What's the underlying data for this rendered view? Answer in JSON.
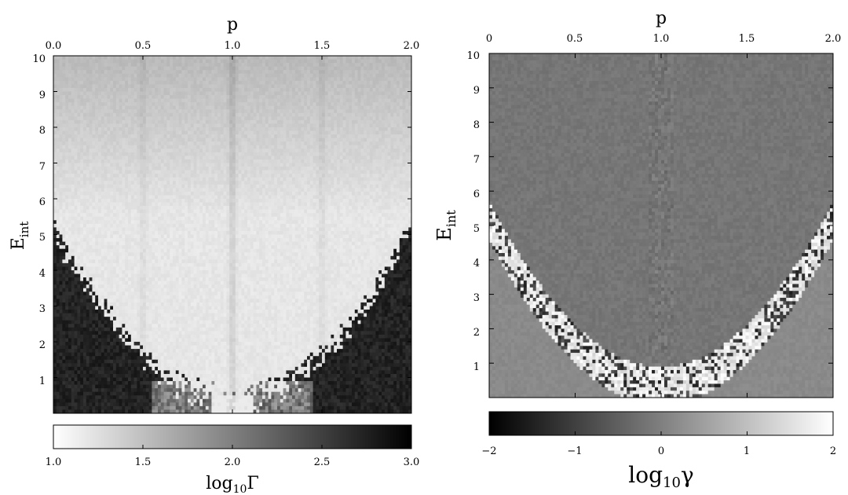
{
  "chart_data": [
    {
      "type": "heatmap",
      "xlabel": "p",
      "ylabel": "E",
      "ylabel_sub": "int",
      "xlim": [
        0.0,
        2.0
      ],
      "ylim": [
        0.0,
        10.0
      ],
      "xticks": [
        "0.0",
        "0.5",
        "1.0",
        "1.5",
        "2.0"
      ],
      "yticks": [
        "1",
        "2",
        "3",
        "4",
        "5",
        "6",
        "7",
        "8",
        "9",
        "10"
      ],
      "colorbar": {
        "label_prefix": "log",
        "label_sub": "10",
        "label_symbol": "Γ",
        "range": [
          1.0,
          3.0
        ],
        "ticks": [
          "1.0",
          "1.5",
          "2.0",
          "2.5",
          "3.0"
        ],
        "colormap": "white-to-black"
      },
      "features": {
        "boundary_energy_at_p0": 5.2,
        "boundary_energy_at_p1": 0.4,
        "vertical_lines_at_p": [
          0.5,
          1.0,
          1.5
        ]
      }
    },
    {
      "type": "heatmap",
      "xlabel": "p",
      "ylabel": "E",
      "ylabel_sub": "int",
      "xlim": [
        0.0,
        2.0
      ],
      "ylim": [
        0.0,
        10.0
      ],
      "xticks": [
        "0",
        "0.5",
        "1.0",
        "1.5",
        "2.0"
      ],
      "yticks": [
        "1",
        "2",
        "3",
        "4",
        "5",
        "6",
        "7",
        "8",
        "9",
        "10"
      ],
      "colorbar": {
        "label_prefix": "log",
        "label_sub": "10",
        "label_symbol": "γ",
        "range": [
          -2,
          2
        ],
        "ticks": [
          "−2",
          "−1",
          "0",
          "1",
          "2"
        ],
        "colormap": "black-to-white"
      },
      "features": {
        "bright_band_energy_at_p0": 5.2,
        "bright_band_energy_at_p1": 0.4
      }
    }
  ]
}
